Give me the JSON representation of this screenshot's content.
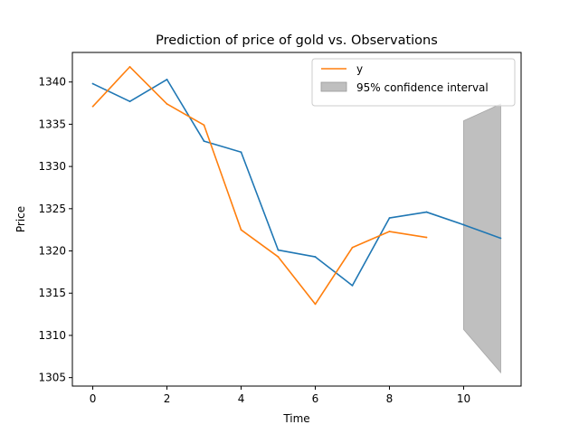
{
  "chart_data": {
    "type": "line",
    "title": "Prediction of price of gold vs. Observations",
    "xlabel": "Time",
    "ylabel": "Price",
    "xlim": [
      -0.55,
      11.55
    ],
    "ylim": [
      1304,
      1343.5
    ],
    "xticks": [
      0,
      2,
      4,
      6,
      8,
      10
    ],
    "yticks": [
      1305,
      1310,
      1315,
      1320,
      1325,
      1330,
      1335,
      1340
    ],
    "grid": false,
    "legend_position": "top-right",
    "series": [
      {
        "name": "",
        "color": "#1f77b4",
        "x": [
          0,
          1,
          2,
          3,
          4,
          5,
          6,
          7,
          8,
          9,
          10,
          11
        ],
        "values": [
          1339.8,
          1337.7,
          1340.3,
          1333.0,
          1331.7,
          1320.1,
          1319.3,
          1315.9,
          1323.9,
          1324.6,
          1323.1,
          1321.5
        ]
      },
      {
        "name": "y",
        "color": "#ff7f0e",
        "x": [
          0,
          1,
          2,
          3,
          4,
          5,
          6,
          7,
          8,
          9
        ],
        "values": [
          1337.1,
          1341.8,
          1337.4,
          1334.9,
          1322.5,
          1319.3,
          1313.7,
          1320.4,
          1322.3,
          1321.6
        ]
      }
    ],
    "confidence_interval": {
      "name": "95% confidence interval",
      "color": "#bfbfbf",
      "x": [
        10,
        11
      ],
      "lower": [
        1310.7,
        1305.6
      ],
      "upper": [
        1335.4,
        1337.4
      ]
    }
  }
}
